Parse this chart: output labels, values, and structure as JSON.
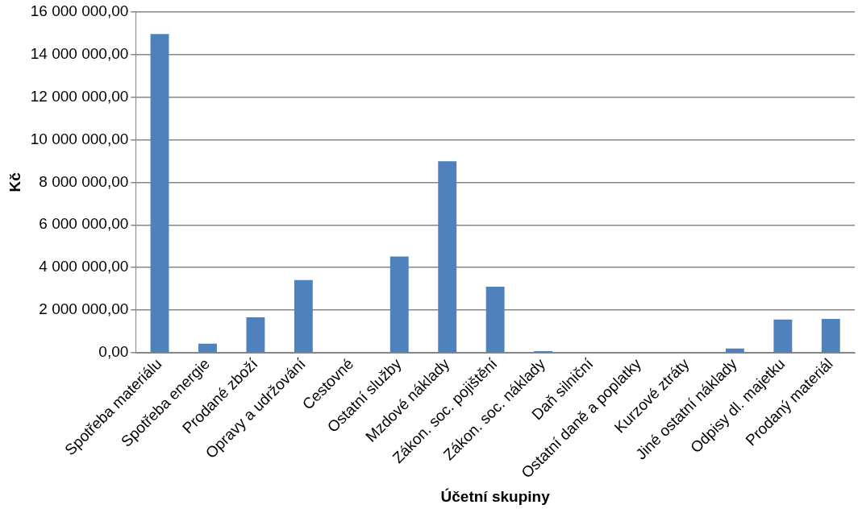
{
  "chart_data": {
    "type": "bar",
    "xlabel": "Účetní skupiny",
    "ylabel": "Kč",
    "categories": [
      "Spotřeba materiálu",
      "Spotřeba energie",
      "Prodané zboží",
      "Opravy a udržování",
      "Cestovné",
      "Ostatní služby",
      "Mzdové náklady",
      "Zákon. soc. pojištění",
      "Zákon. soc. náklady",
      "Daň silniční",
      "Ostatní daně a poplatky",
      "Kurzové ztráty",
      "Jiné ostatní náklady",
      "Odpisy dl. majetku",
      "Prodaný materiál"
    ],
    "values": [
      14950000,
      430000,
      1670000,
      3410000,
      null,
      4520000,
      8980000,
      3100000,
      80000,
      null,
      null,
      null,
      200000,
      1560000,
      1590000
    ],
    "color": "#4f81bd",
    "ylim": [
      0,
      16000000
    ],
    "yticks": [
      {
        "value": 0,
        "label": "0,00"
      },
      {
        "value": 2000000,
        "label": "2 000 000,00"
      },
      {
        "value": 4000000,
        "label": "4 000 000,00"
      },
      {
        "value": 6000000,
        "label": "6 000 000,00"
      },
      {
        "value": 8000000,
        "label": "8 000 000,00"
      },
      {
        "value": 10000000,
        "label": "10 000 000,00"
      },
      {
        "value": 12000000,
        "label": "12 000 000,00"
      },
      {
        "value": 14000000,
        "label": "14 000 000,00"
      },
      {
        "value": 16000000,
        "label": "16 000 000,00"
      }
    ],
    "grid": "y",
    "legend": false
  }
}
